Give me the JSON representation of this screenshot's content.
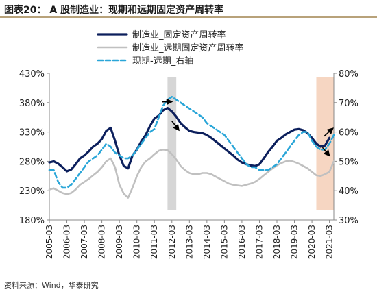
{
  "header": {
    "title": "图表20：  A 股制造业：现期和远期固定资产周转率"
  },
  "footer": {
    "source": "资料来源：Wind，华泰研究"
  },
  "colors": {
    "current": "#0c1f5c",
    "forward": "#c0c0c0",
    "ratio": "#2aa6d8",
    "grey_band": "#d6d6d6",
    "peach_band": "#f6d6c2"
  },
  "chart_data": {
    "type": "line",
    "title": "",
    "xlabel": "",
    "ylabel": "",
    "left_axis": {
      "ylim": [
        180,
        430
      ],
      "ticks": [
        "180%",
        "230%",
        "280%",
        "330%",
        "380%",
        "430%"
      ]
    },
    "right_axis": {
      "ylim": [
        30,
        80
      ],
      "ticks": [
        "30%",
        "40%",
        "50%",
        "60%",
        "70%",
        "80%"
      ]
    },
    "x_range": [
      2005.0,
      2021.25
    ],
    "x_ticks": [
      "2005-03",
      "2006-03",
      "2007-03",
      "2008-03",
      "2009-03",
      "2010-03",
      "2011-03",
      "2012-03",
      "2013-03",
      "2014-03",
      "2015-03",
      "2016-03",
      "2017-03",
      "2018-03",
      "2019-03",
      "2020-03",
      "2021-03"
    ],
    "legend_placement": "top-center",
    "grid": false,
    "bands": [
      {
        "x": [
          2011.75,
          2012.25
        ]
      },
      {
        "x": [
          2020.25,
          2021.25
        ]
      }
    ],
    "series": [
      {
        "name": "制造业_固定资产周转率",
        "axis": "left",
        "x": [
          2005.0,
          2005.25,
          2005.5,
          2005.75,
          2006.0,
          2006.25,
          2006.5,
          2006.75,
          2007.0,
          2007.25,
          2007.5,
          2007.75,
          2008.0,
          2008.25,
          2008.5,
          2008.75,
          2009.0,
          2009.25,
          2009.5,
          2009.75,
          2010.0,
          2010.25,
          2010.5,
          2010.75,
          2011.0,
          2011.25,
          2011.5,
          2011.75,
          2012.0,
          2012.25,
          2012.5,
          2012.75,
          2013.0,
          2013.25,
          2013.5,
          2013.75,
          2014.0,
          2014.25,
          2014.5,
          2014.75,
          2015.0,
          2015.25,
          2015.5,
          2015.75,
          2016.0,
          2016.25,
          2016.5,
          2016.75,
          2017.0,
          2017.25,
          2017.5,
          2017.75,
          2018.0,
          2018.25,
          2018.5,
          2018.75,
          2019.0,
          2019.25,
          2019.5,
          2019.75,
          2020.0,
          2020.25,
          2020.5,
          2020.75,
          2021.0
        ],
        "y": [
          278,
          280,
          276,
          270,
          263,
          266,
          275,
          285,
          290,
          297,
          305,
          310,
          318,
          332,
          337,
          315,
          290,
          272,
          268,
          290,
          300,
          314,
          325,
          340,
          353,
          358,
          367,
          371,
          365,
          356,
          345,
          338,
          332,
          330,
          329,
          328,
          325,
          320,
          314,
          308,
          302,
          296,
          290,
          283,
          278,
          275,
          273,
          272,
          275,
          285,
          296,
          305,
          315,
          320,
          326,
          330,
          334,
          335,
          333,
          328,
          320,
          310,
          305,
          307,
          320
        ]
      },
      {
        "name": "制造业_远期固定资产周转率",
        "axis": "left",
        "x": [
          2005.0,
          2005.25,
          2005.5,
          2005.75,
          2006.0,
          2006.25,
          2006.5,
          2006.75,
          2007.0,
          2007.25,
          2007.5,
          2007.75,
          2008.0,
          2008.25,
          2008.5,
          2008.75,
          2009.0,
          2009.25,
          2009.5,
          2009.75,
          2010.0,
          2010.25,
          2010.5,
          2010.75,
          2011.0,
          2011.25,
          2011.5,
          2011.75,
          2012.0,
          2012.25,
          2012.5,
          2012.75,
          2013.0,
          2013.25,
          2013.5,
          2013.75,
          2014.0,
          2014.25,
          2014.5,
          2014.75,
          2015.0,
          2015.25,
          2015.5,
          2015.75,
          2016.0,
          2016.25,
          2016.5,
          2016.75,
          2017.0,
          2017.25,
          2017.5,
          2017.75,
          2018.0,
          2018.25,
          2018.5,
          2018.75,
          2019.0,
          2019.25,
          2019.5,
          2019.75,
          2020.0,
          2020.25,
          2020.5,
          2020.75,
          2021.0,
          2021.25
        ],
        "y": [
          232,
          234,
          230,
          226,
          224,
          226,
          232,
          240,
          245,
          250,
          256,
          262,
          270,
          280,
          285,
          270,
          240,
          225,
          218,
          235,
          255,
          270,
          280,
          285,
          292,
          298,
          300,
          299,
          292,
          283,
          272,
          265,
          260,
          258,
          258,
          260,
          260,
          258,
          254,
          250,
          246,
          242,
          240,
          239,
          238,
          240,
          242,
          245,
          250,
          256,
          262,
          268,
          273,
          277,
          280,
          281,
          279,
          276,
          272,
          268,
          262,
          256,
          255,
          258,
          262,
          280
        ]
      },
      {
        "name": "现期-远期_右轴",
        "axis": "right",
        "x": [
          2005.0,
          2005.25,
          2005.5,
          2005.75,
          2006.0,
          2006.25,
          2006.5,
          2006.75,
          2007.0,
          2007.25,
          2007.5,
          2007.75,
          2008.0,
          2008.25,
          2008.5,
          2008.75,
          2009.0,
          2009.25,
          2009.5,
          2009.75,
          2010.0,
          2010.25,
          2010.5,
          2010.75,
          2011.0,
          2011.25,
          2011.5,
          2011.75,
          2012.0,
          2012.25,
          2012.5,
          2012.75,
          2013.0,
          2013.25,
          2013.5,
          2013.75,
          2014.0,
          2014.25,
          2014.5,
          2014.75,
          2015.0,
          2015.25,
          2015.5,
          2015.75,
          2016.0,
          2016.25,
          2016.5,
          2016.75,
          2017.0,
          2017.25,
          2017.5,
          2017.75,
          2018.0,
          2018.25,
          2018.5,
          2018.75,
          2019.0,
          2019.25,
          2019.5,
          2019.75,
          2020.0,
          2020.25,
          2020.5,
          2020.75,
          2021.0,
          2021.25
        ],
        "y": [
          47,
          47,
          43,
          41,
          41,
          42,
          44,
          46,
          48,
          50,
          51,
          52,
          54,
          56,
          55,
          53,
          52,
          51,
          51,
          52,
          54,
          56,
          58,
          60,
          61,
          65,
          69,
          71,
          72,
          71,
          70,
          69,
          68,
          67,
          66,
          65,
          63,
          62,
          61,
          60,
          59,
          57,
          55,
          53,
          51,
          49,
          48,
          48,
          47,
          47,
          47,
          48,
          49,
          51,
          53,
          55,
          57,
          59,
          60,
          60,
          57,
          55,
          54,
          54,
          56,
          59
        ]
      }
    ],
    "annotations": [
      {
        "type": "arrow",
        "series": 0,
        "direction": "up",
        "x": [
          2011.45,
          2012.0
        ]
      },
      {
        "type": "arrow",
        "series": 0,
        "direction": "down",
        "x": [
          2012.0,
          2012.4
        ]
      },
      {
        "type": "arrow",
        "series": 0,
        "direction": "down",
        "x": [
          2020.6,
          2021.0
        ]
      },
      {
        "type": "arrow",
        "series": 0,
        "direction": "up",
        "x": [
          2020.7,
          2021.2
        ]
      }
    ]
  }
}
